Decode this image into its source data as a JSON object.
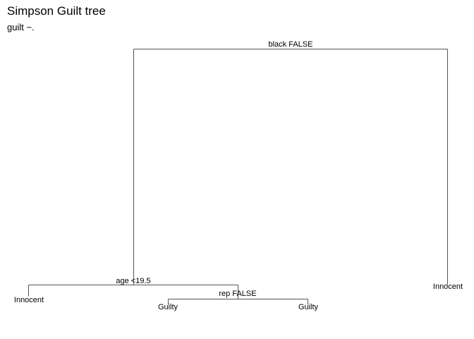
{
  "title": "Simpson Guilt tree",
  "subtitle": "guilt ~.",
  "tree": {
    "root": {
      "label": "black FALSE"
    },
    "left_split": {
      "label": "age <19.5"
    },
    "right_leaf": {
      "label": "Innocent"
    },
    "left_left_leaf": {
      "label": "Innocent"
    },
    "rep_split": {
      "label": "rep FALSE"
    },
    "rep_left_leaf": {
      "label": "Guilty"
    },
    "rep_right_leaf": {
      "label": "Guilty"
    }
  },
  "colors": {
    "edge": "#555555",
    "text": "#000000",
    "background": "#ffffff"
  }
}
